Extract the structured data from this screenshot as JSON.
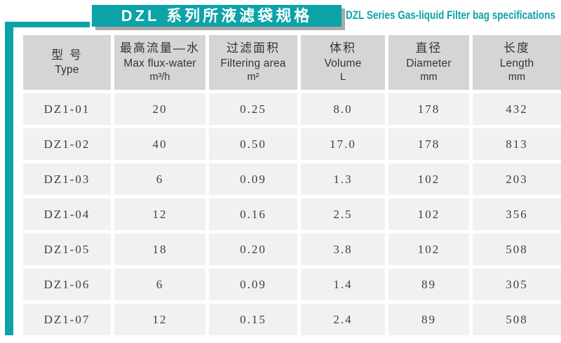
{
  "title": {
    "zh": "DZL 系列所液滤袋规格",
    "en": "DZL Series Gas-liquid Filter bag specifications"
  },
  "colors": {
    "accent": "#0ba3a8",
    "shadow": "#a9a9a9",
    "header_bg": "#d5d5d4",
    "row_bg": "#f1f1ef"
  },
  "table": {
    "columns": [
      {
        "zh": "型 号",
        "en": "Type",
        "unit": ""
      },
      {
        "zh": "最高流量—水",
        "en": "Max flux-water",
        "unit": "m³/h"
      },
      {
        "zh": "过滤面积",
        "en": "Filtering area",
        "unit": "m²"
      },
      {
        "zh": "体积",
        "en": "Volume",
        "unit": "L"
      },
      {
        "zh": "直径",
        "en": "Diameter",
        "unit": "mm"
      },
      {
        "zh": "长度",
        "en": "Length",
        "unit": "mm"
      }
    ],
    "rows": [
      [
        "DZ1-01",
        "20",
        "0.25",
        "8.0",
        "178",
        "432"
      ],
      [
        "DZ1-02",
        "40",
        "0.50",
        "17.0",
        "178",
        "813"
      ],
      [
        "DZ1-03",
        "6",
        "0.09",
        "1.3",
        "102",
        "203"
      ],
      [
        "DZ1-04",
        "12",
        "0.16",
        "2.5",
        "102",
        "356"
      ],
      [
        "DZ1-05",
        "18",
        "0.20",
        "3.8",
        "102",
        "508"
      ],
      [
        "DZ1-06",
        "6",
        "0.09",
        "1.4",
        "89",
        "305"
      ],
      [
        "DZ1-07",
        "12",
        "0.15",
        "2.4",
        "89",
        "508"
      ]
    ]
  }
}
